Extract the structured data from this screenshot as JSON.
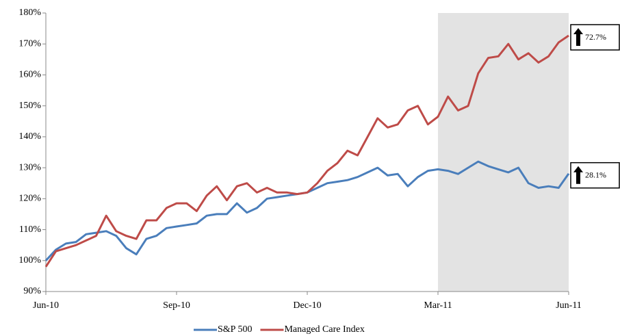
{
  "chart_data": {
    "type": "line",
    "x": [
      0,
      1,
      2,
      3,
      4,
      5,
      6,
      7,
      8,
      9,
      10,
      11,
      12,
      13,
      14,
      15,
      16,
      17,
      18,
      19,
      20,
      21,
      22,
      23,
      24,
      25,
      26,
      27,
      28,
      29,
      30,
      31,
      32,
      33,
      34,
      35,
      36,
      37,
      38,
      39,
      40,
      41,
      42,
      43,
      44,
      45,
      46,
      47,
      48,
      49,
      50,
      51,
      52
    ],
    "xlim": [
      0,
      52
    ],
    "xticks": [
      {
        "value": 0,
        "label": "Jun-10"
      },
      {
        "value": 13,
        "label": "Sep-10"
      },
      {
        "value": 26,
        "label": "Dec-10"
      },
      {
        "value": 39,
        "label": "Mar-11"
      },
      {
        "value": 52,
        "label": "Jun-11"
      }
    ],
    "ylim": [
      90,
      180
    ],
    "yticks": [
      {
        "value": 90,
        "label": "90%"
      },
      {
        "value": 100,
        "label": "100%"
      },
      {
        "value": 110,
        "label": "110%"
      },
      {
        "value": 120,
        "label": "120%"
      },
      {
        "value": 130,
        "label": "130%"
      },
      {
        "value": 140,
        "label": "140%"
      },
      {
        "value": 150,
        "label": "150%"
      },
      {
        "value": 160,
        "label": "160%"
      },
      {
        "value": 170,
        "label": "170%"
      },
      {
        "value": 180,
        "label": "180%"
      }
    ],
    "shade": [
      39,
      52
    ],
    "grid": false,
    "legend": "bottom",
    "series": [
      {
        "name": "S&P 500",
        "color": "#4a7ebb",
        "values": [
          100,
          103.5,
          105.5,
          106,
          108.5,
          109,
          109.5,
          108,
          104,
          102,
          107,
          108,
          110.5,
          111,
          111.5,
          112,
          114.5,
          115,
          115,
          118.5,
          115.5,
          117,
          120,
          120.5,
          121,
          121.5,
          122,
          123.5,
          125,
          125.5,
          126,
          127,
          128.5,
          130,
          127.5,
          128,
          124,
          127,
          129,
          129.5,
          129,
          128,
          130,
          132,
          130.5,
          129.5,
          128.5,
          130,
          125,
          123.5,
          124,
          123.5,
          128.1
        ]
      },
      {
        "name": "Managed Care Index",
        "color": "#be4b48",
        "values": [
          98,
          103,
          104,
          105,
          106.5,
          108,
          114.5,
          109.5,
          108,
          107,
          113,
          113,
          117,
          118.5,
          118.5,
          116,
          121,
          124,
          119.5,
          124,
          125,
          122,
          123.5,
          122,
          122,
          121.5,
          122,
          125,
          129,
          131.5,
          135.5,
          134,
          140,
          146,
          143,
          144,
          148.5,
          150,
          144,
          146.5,
          153,
          148.5,
          150,
          160.5,
          165.5,
          166,
          170,
          165,
          167,
          164,
          166,
          170.5,
          172.7
        ]
      }
    ],
    "annotations": [
      "28.1%",
      "72.7%"
    ]
  }
}
